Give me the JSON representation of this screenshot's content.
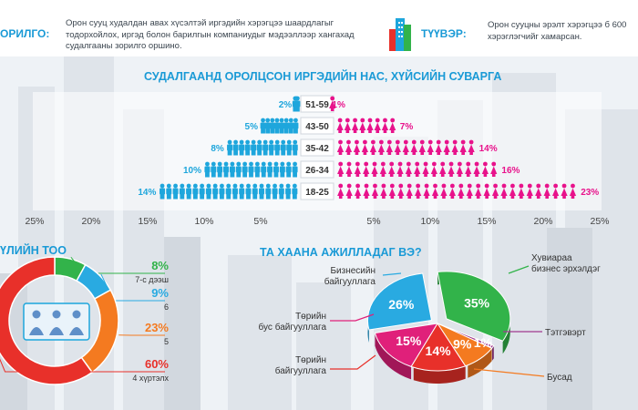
{
  "header": {
    "goal_label": "ОРИЛГО:",
    "goal_text": "Орон сууц худалдан авах хүсэлтэй иргэдийн хэрэгцээ шаардлагыг тодорхойлох, иргэд болон барилгын компаниудыг мэдээллээр хангахад судалгааны зорилго оршино.",
    "summary_label": "ТҮҮВЭР:",
    "summary_text": "Орон сууцны эрэлт хэрэгцээ б 600 хэрэглэгчийг хамарсан."
  },
  "pyramid_title": "СУДАЛГААНД ОРОЛЦСОН ИРГЭДИЙН НАС, ХҮЙСИЙН СУВАРГА",
  "household_title": "ҮЛИЙН ТОО",
  "work_title": "ТА ХААНА АЖИЛЛАДАГ ВЭ?",
  "colors": {
    "male": "#1ea6dc",
    "female": "#e8128b",
    "title_blue": "#1a9ad6",
    "red": "#e8302a",
    "orange": "#f47a20",
    "green": "#32b34a",
    "light_blue": "#29aae1",
    "purple": "#a0398f",
    "pink": "#e0207a"
  },
  "chart_data": [
    {
      "type": "bar",
      "title": "СУДАЛГААНД ОРОЛЦСОН ИРГЭДИЙН НАС, ХҮЙСИЙН СУВАРГА",
      "categories": [
        "51-59",
        "43-50",
        "35-42",
        "26-34",
        "18-25"
      ],
      "series": [
        {
          "name": "male",
          "values": [
            2,
            5,
            8,
            10,
            14
          ],
          "labels": [
            "2%",
            "5%",
            "8%",
            "10%",
            "14%"
          ]
        },
        {
          "name": "female",
          "values": [
            1,
            7,
            14,
            16,
            23
          ],
          "labels": [
            "1%",
            "7%",
            "14%",
            "16%",
            "23%"
          ]
        }
      ],
      "axis_ticks_left": [
        "25%",
        "20%",
        "15%",
        "10%",
        "5%"
      ],
      "axis_ticks_right": [
        "5%",
        "10%",
        "15%",
        "20%",
        "25%"
      ],
      "xlim": [
        -25,
        25
      ]
    },
    {
      "type": "pie",
      "title": "ҮЛИЙН ТОО",
      "slices": [
        {
          "label": "7-с дээш",
          "value": 8,
          "text": "8%",
          "color": "#32b34a"
        },
        {
          "label": "6",
          "value": 9,
          "text": "9%",
          "color": "#29aae1"
        },
        {
          "label": "5",
          "value": 23,
          "text": "23%",
          "color": "#f47a20"
        },
        {
          "label": "4 хүртэлх",
          "value": 60,
          "text": "60%",
          "color": "#e8302a"
        }
      ]
    },
    {
      "type": "pie",
      "title": "ТА ХААНА АЖИЛЛАДАГ ВЭ?",
      "slices": [
        {
          "label": "Хувиараа бизнес эрхэлдэг",
          "value": 35,
          "text": "35%",
          "color": "#32b34a"
        },
        {
          "label": "Тэтгэвэрт",
          "value": 1,
          "text": "1%",
          "color": "#a0398f"
        },
        {
          "label": "Бусад",
          "value": 9,
          "text": "9%",
          "color": "#f47a20"
        },
        {
          "label": "Төрийн байгууллага",
          "value": 14,
          "text": "14%",
          "color": "#e8302a"
        },
        {
          "label": "Төрийн бус байгууллага",
          "value": 15,
          "text": "15%",
          "color": "#e0207a"
        },
        {
          "label": "Бизнесийн байгууллага",
          "value": 26,
          "text": "26%",
          "color": "#29aae1"
        }
      ]
    }
  ]
}
